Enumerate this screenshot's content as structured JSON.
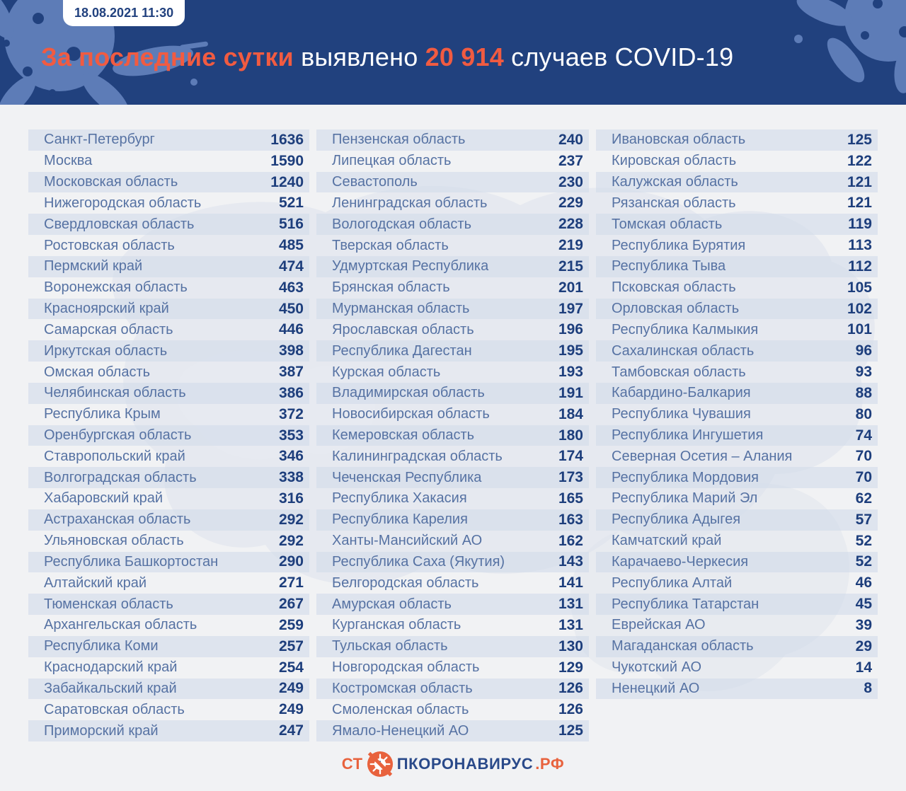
{
  "header": {
    "timestamp": "18.08.2021 11:30",
    "title": {
      "accent_lead": "За последние сутки",
      "plain_mid": " выявлено ",
      "accent_value": "20 914",
      "plain_tail": " случаев COVID-19"
    }
  },
  "chart_data": {
    "type": "table",
    "title": "За последние сутки выявлено 20 914 случаев COVID-19",
    "timestamp": "18.08.2021 11:30",
    "total_new_cases": 20914,
    "columns": [
      {
        "rows": [
          {
            "region": "Санкт-Петербург",
            "cases": 1636
          },
          {
            "region": "Москва",
            "cases": 1590
          },
          {
            "region": "Московская область",
            "cases": 1240
          },
          {
            "region": "Нижегородская область",
            "cases": 521
          },
          {
            "region": "Свердловская область",
            "cases": 516
          },
          {
            "region": "Ростовская область",
            "cases": 485
          },
          {
            "region": "Пермский край",
            "cases": 474
          },
          {
            "region": "Воронежская область",
            "cases": 463
          },
          {
            "region": "Красноярский край",
            "cases": 450
          },
          {
            "region": "Самарская область",
            "cases": 446
          },
          {
            "region": "Иркутская область",
            "cases": 398
          },
          {
            "region": "Омская область",
            "cases": 387
          },
          {
            "region": "Челябинская область",
            "cases": 386
          },
          {
            "region": "Республика Крым",
            "cases": 372
          },
          {
            "region": "Оренбургская область",
            "cases": 353
          },
          {
            "region": "Ставропольский край",
            "cases": 346
          },
          {
            "region": "Волгоградская область",
            "cases": 338
          },
          {
            "region": "Хабаровский край",
            "cases": 316
          },
          {
            "region": "Астраханская область",
            "cases": 292
          },
          {
            "region": "Ульяновская область",
            "cases": 292
          },
          {
            "region": "Республика Башкортостан",
            "cases": 290
          },
          {
            "region": "Алтайский край",
            "cases": 271
          },
          {
            "region": "Тюменская область",
            "cases": 267
          },
          {
            "region": "Архангельская область",
            "cases": 259
          },
          {
            "region": "Республика Коми",
            "cases": 257
          },
          {
            "region": "Краснодарский край",
            "cases": 254
          },
          {
            "region": "Забайкальский край",
            "cases": 249
          },
          {
            "region": "Саратовская область",
            "cases": 249
          },
          {
            "region": "Приморский край",
            "cases": 247
          }
        ]
      },
      {
        "rows": [
          {
            "region": "Пензенская область",
            "cases": 240
          },
          {
            "region": "Липецкая область",
            "cases": 237
          },
          {
            "region": "Севастополь",
            "cases": 230
          },
          {
            "region": "Ленинградская область",
            "cases": 229
          },
          {
            "region": "Вологодская область",
            "cases": 228
          },
          {
            "region": "Тверская область",
            "cases": 219
          },
          {
            "region": "Удмуртская Республика",
            "cases": 215
          },
          {
            "region": "Брянская область",
            "cases": 201
          },
          {
            "region": "Мурманская область",
            "cases": 197
          },
          {
            "region": "Ярославская область",
            "cases": 196
          },
          {
            "region": "Республика Дагестан",
            "cases": 195
          },
          {
            "region": "Курская область",
            "cases": 193
          },
          {
            "region": "Владимирская область",
            "cases": 191
          },
          {
            "region": "Новосибирская область",
            "cases": 184
          },
          {
            "region": "Кемеровская область",
            "cases": 180
          },
          {
            "region": "Калининградская область",
            "cases": 174
          },
          {
            "region": "Чеченская Республика",
            "cases": 173
          },
          {
            "region": "Республика Хакасия",
            "cases": 165
          },
          {
            "region": "Республика Карелия",
            "cases": 163
          },
          {
            "region": "Ханты-Мансийский АО",
            "cases": 162
          },
          {
            "region": "Республика Саха (Якутия)",
            "cases": 143
          },
          {
            "region": "Белгородская область",
            "cases": 141
          },
          {
            "region": "Амурская область",
            "cases": 131
          },
          {
            "region": "Курганская область",
            "cases": 131
          },
          {
            "region": "Тульская область",
            "cases": 130
          },
          {
            "region": "Новгородская область",
            "cases": 129
          },
          {
            "region": "Костромская область",
            "cases": 126
          },
          {
            "region": "Смоленская область",
            "cases": 126
          },
          {
            "region": "Ямало-Ненецкий АО",
            "cases": 125
          }
        ]
      },
      {
        "rows": [
          {
            "region": "Ивановская область",
            "cases": 125
          },
          {
            "region": "Кировская область",
            "cases": 122
          },
          {
            "region": "Калужская область",
            "cases": 121
          },
          {
            "region": "Рязанская область",
            "cases": 121
          },
          {
            "region": "Томская область",
            "cases": 119
          },
          {
            "region": "Республика Бурятия",
            "cases": 113
          },
          {
            "region": "Республика Тыва",
            "cases": 112
          },
          {
            "region": "Псковская область",
            "cases": 105
          },
          {
            "region": "Орловская область",
            "cases": 102
          },
          {
            "region": "Республика Калмыкия",
            "cases": 101
          },
          {
            "region": "Сахалинская область",
            "cases": 96
          },
          {
            "region": "Тамбовская область",
            "cases": 93
          },
          {
            "region": "Кабардино-Балкария",
            "cases": 88
          },
          {
            "region": "Республика Чувашия",
            "cases": 80
          },
          {
            "region": "Республика Ингушетия",
            "cases": 74
          },
          {
            "region": "Северная Осетия – Алания",
            "cases": 70
          },
          {
            "region": "Республика Мордовия",
            "cases": 70
          },
          {
            "region": "Республика Марий Эл",
            "cases": 62
          },
          {
            "region": "Республика Адыгея",
            "cases": 57
          },
          {
            "region": "Камчатский край",
            "cases": 52
          },
          {
            "region": "Карачаево-Черкесия",
            "cases": 52
          },
          {
            "region": "Республика Алтай",
            "cases": 46
          },
          {
            "region": "Республика Татарстан",
            "cases": 45
          },
          {
            "region": "Еврейская АО",
            "cases": 39
          },
          {
            "region": "Магаданская область",
            "cases": 29
          },
          {
            "region": "Чукотский АО",
            "cases": 14
          },
          {
            "region": "Ненецкий АО",
            "cases": 8
          }
        ]
      }
    ]
  },
  "footer": {
    "logo": {
      "prefix": "СТ",
      "middle": "ПКОРОНАВИРУС",
      "suffix": ".РФ"
    }
  },
  "colors": {
    "header_bg": "#21417e",
    "accent_orange": "#f15b41",
    "logo_orange": "#e8623d",
    "logo_navy": "#2a4a8a",
    "page_bg": "#f1f2f4",
    "row_stripe": "#dfe5f0",
    "region_text": "#5672a3",
    "count_text": "#1d3e7c",
    "blob_blue": "#5d7cb7",
    "map_tint": "#dde2ec"
  }
}
